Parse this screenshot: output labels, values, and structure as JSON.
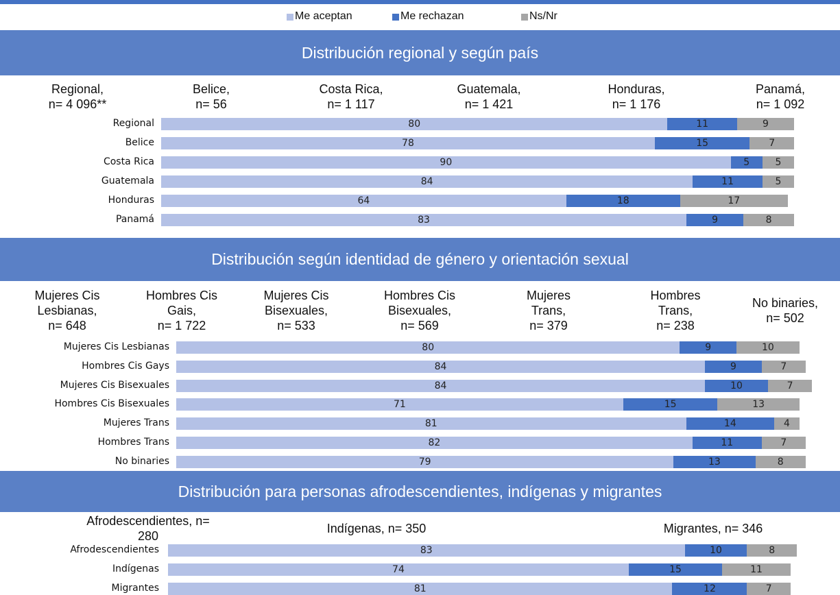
{
  "chart_data": [
    {
      "type": "stacked-bar-horizontal",
      "title": "Distribución regional y según país",
      "headers": [
        "Regional,\nn= 4 096**",
        "Belice,\nn= 56",
        "Costa Rica,\nn= 1 117",
        "Guatemala,\nn= 1 421",
        "Honduras,\nn= 1 176",
        "Panamá,\nn= 1 092"
      ],
      "categories": [
        "Regional",
        "Belice",
        "Costa Rica",
        "Guatemala",
        "Honduras",
        "Panamá"
      ],
      "xlim": [
        0,
        100
      ],
      "series": [
        {
          "name": "Me aceptan",
          "color": "#b4c1e6",
          "values": [
            80,
            78,
            90,
            84,
            64,
            83
          ]
        },
        {
          "name": "Me rechazan",
          "color": "#4472c4",
          "values": [
            11,
            15,
            5,
            11,
            18,
            9
          ]
        },
        {
          "name": "Ns/Nr",
          "color": "#a6a6a6",
          "values": [
            9,
            7,
            5,
            5,
            17,
            8
          ]
        }
      ]
    },
    {
      "type": "stacked-bar-horizontal",
      "title": "Distribución según identidad de género y orientación sexual",
      "headers": [
        "Mujeres Cis\nLesbianas,\nn= 648",
        "Hombres Cis\nGais,\nn= 1 722",
        "Mujeres Cis\nBisexuales,\nn= 533",
        "Hombres Cis\nBisexuales,\nn= 569",
        "Mujeres\nTrans,\nn= 379",
        "Hombres\nTrans,\nn= 238",
        "No binaries,\nn= 502"
      ],
      "categories": [
        "Mujeres Cis Lesbianas",
        "Hombres Cis Gays",
        "Mujeres Cis Bisexuales",
        "Hombres Cis Bisexuales",
        "Mujeres Trans",
        "Hombres Trans",
        "No binaries"
      ],
      "xlim": [
        0,
        100
      ],
      "series": [
        {
          "color": "#b4c1e6",
          "values": [
            80,
            84,
            84,
            71,
            81,
            82,
            79
          ]
        },
        {
          "color": "#4472c4",
          "values": [
            9,
            9,
            10,
            15,
            14,
            11,
            13
          ]
        },
        {
          "color": "#a6a6a6",
          "values": [
            10,
            7,
            7,
            13,
            4,
            7,
            8
          ]
        }
      ]
    },
    {
      "type": "stacked-bar-horizontal",
      "title": "Distribución para personas afrodescendientes, indígenas y migrantes",
      "headers": [
        "Afrodescendientes, n= 280",
        "Indígenas, n= 350",
        "Migrantes, n= 346"
      ],
      "categories": [
        "Afrodescendientes",
        "Indígenas",
        "Migrantes"
      ],
      "xlim": [
        0,
        100
      ],
      "series": [
        {
          "color": "#b4c1e6",
          "values": [
            83,
            74,
            81
          ]
        },
        {
          "color": "#4472c4",
          "values": [
            10,
            15,
            12
          ]
        },
        {
          "color": "#a6a6a6",
          "values": [
            8,
            11,
            7
          ]
        }
      ]
    }
  ]
}
